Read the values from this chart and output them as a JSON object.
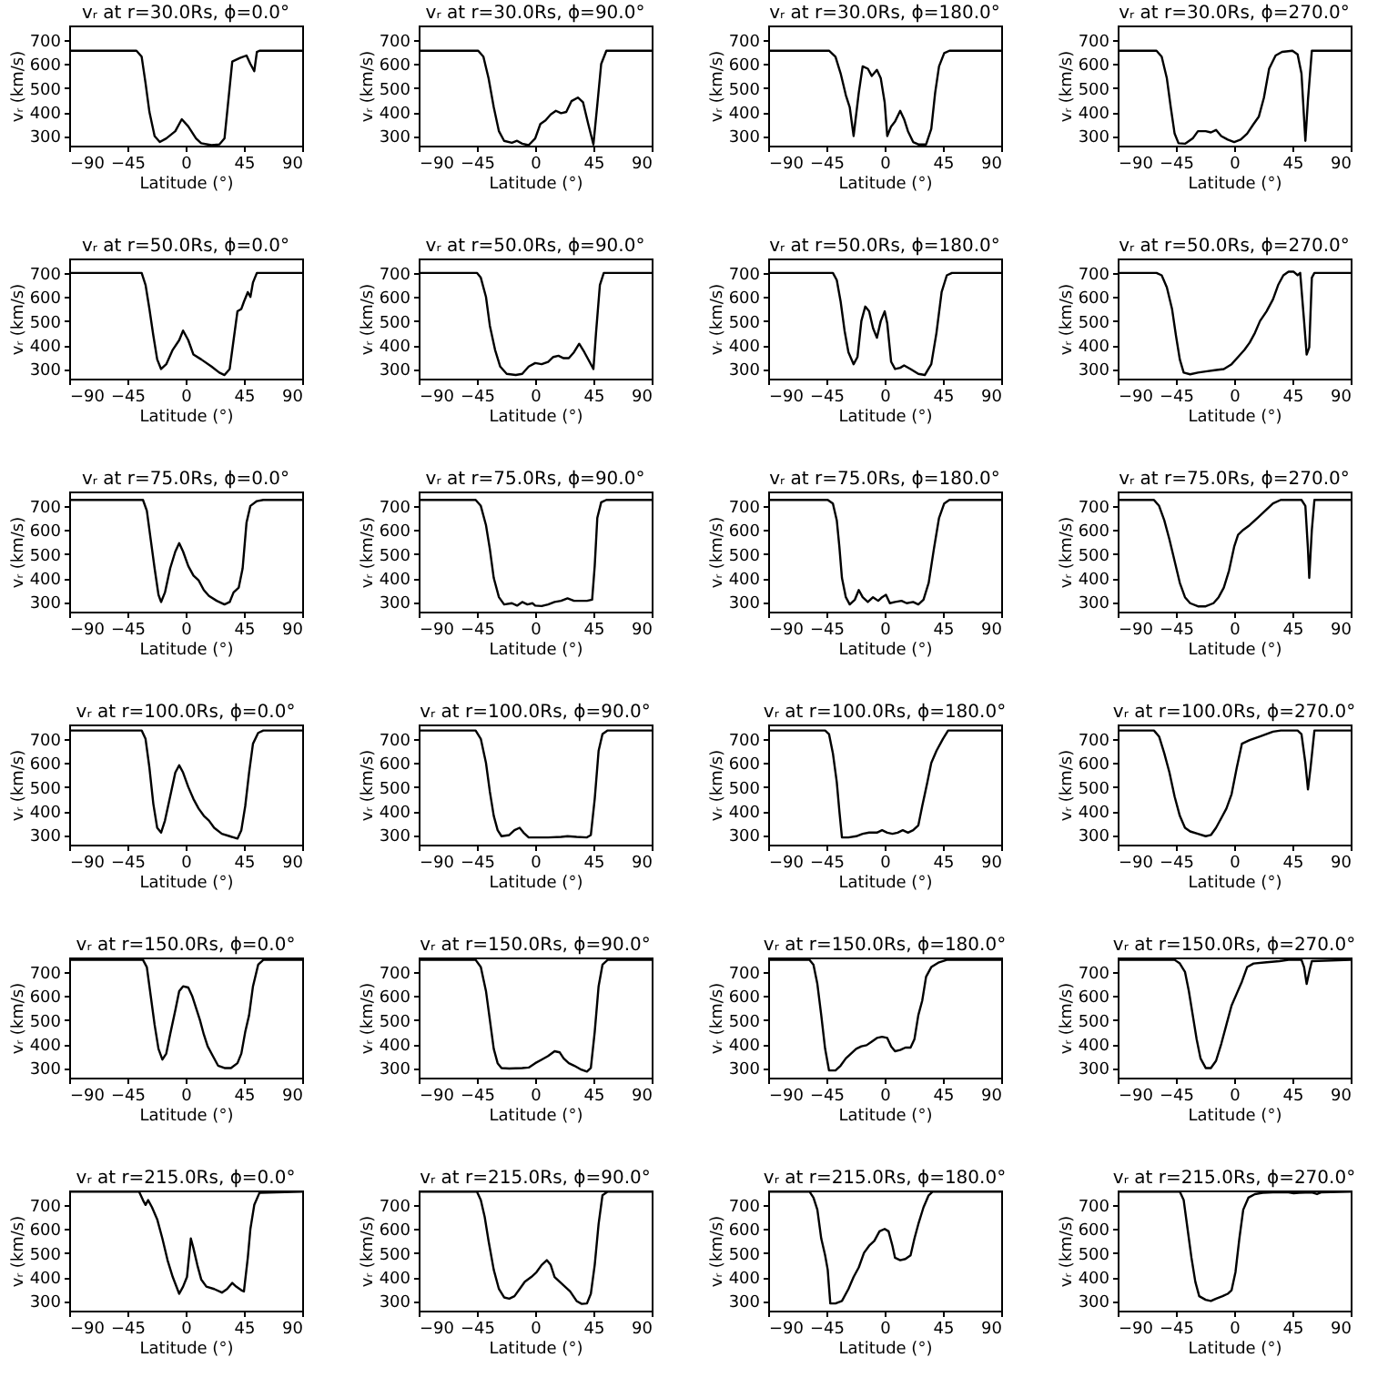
{
  "chart_data": [
    {
      "type": "line",
      "title": "vᵣ at r=30.0Rs, ϕ=0.0°",
      "xlabel": "Latitude (°)",
      "ylabel": "vᵣ (km/s)",
      "color": "#000000",
      "xlim": [
        -90,
        90
      ],
      "xticks": [
        -90,
        -45,
        0,
        45,
        90
      ],
      "ylim": [
        260,
        760
      ],
      "yticks": [
        300,
        400,
        500,
        600,
        700
      ],
      "x": [
        -90,
        -38,
        -34,
        -31,
        -28,
        -24,
        -20,
        -15,
        -8,
        -3,
        2,
        8,
        12,
        20,
        26,
        30,
        33,
        36,
        42,
        47,
        50,
        53,
        55,
        57,
        90
      ],
      "values": [
        655,
        655,
        630,
        520,
        400,
        300,
        275,
        290,
        320,
        370,
        340,
        290,
        270,
        262,
        265,
        290,
        450,
        610,
        625,
        635,
        600,
        570,
        650,
        655,
        655
      ]
    },
    {
      "type": "line",
      "title": "vᵣ at r=30.0Rs, ϕ=90.0°",
      "xlabel": "Latitude (°)",
      "ylabel": "vᵣ (km/s)",
      "color": "#000000",
      "xlim": [
        -90,
        90
      ],
      "xticks": [
        -90,
        -45,
        0,
        45,
        90
      ],
      "ylim": [
        260,
        760
      ],
      "yticks": [
        300,
        400,
        500,
        600,
        700
      ],
      "x": [
        -90,
        -44,
        -40,
        -36,
        -32,
        -28,
        -24,
        -18,
        -14,
        -10,
        -5,
        0,
        4,
        8,
        12,
        16,
        20,
        24,
        28,
        33,
        37,
        41,
        45,
        48,
        51,
        55,
        90
      ],
      "values": [
        655,
        655,
        630,
        540,
        420,
        320,
        280,
        272,
        280,
        268,
        262,
        290,
        350,
        365,
        390,
        405,
        395,
        400,
        445,
        460,
        440,
        350,
        265,
        430,
        600,
        655,
        655
      ]
    },
    {
      "type": "line",
      "title": "vᵣ at r=30.0Rs, ϕ=180.0°",
      "xlabel": "Latitude (°)",
      "ylabel": "vᵣ (km/s)",
      "color": "#000000",
      "xlim": [
        -90,
        90
      ],
      "xticks": [
        -90,
        -45,
        0,
        45,
        90
      ],
      "ylim": [
        260,
        760
      ],
      "yticks": [
        300,
        400,
        500,
        600,
        700
      ],
      "x": [
        -90,
        -43,
        -38,
        -34,
        -30,
        -27,
        -24,
        -20,
        -17,
        -13,
        -10,
        -6,
        -3,
        0,
        2,
        5,
        8,
        12,
        15,
        18,
        22,
        26,
        32,
        36,
        39,
        42,
        46,
        50,
        90
      ],
      "values": [
        655,
        655,
        630,
        560,
        470,
        420,
        300,
        480,
        590,
        580,
        550,
        575,
        540,
        440,
        300,
        340,
        360,
        405,
        370,
        320,
        275,
        265,
        265,
        330,
        480,
        590,
        645,
        655,
        655
      ]
    },
    {
      "type": "line",
      "title": "vᵣ at r=30.0Rs, ϕ=270.0°",
      "xlabel": "Latitude (°)",
      "ylabel": "vᵣ (km/s)",
      "color": "#000000",
      "xlim": [
        -90,
        90
      ],
      "xticks": [
        -90,
        -45,
        0,
        45,
        90
      ],
      "ylim": [
        260,
        760
      ],
      "yticks": [
        300,
        400,
        500,
        600,
        700
      ],
      "x": [
        -90,
        -60,
        -56,
        -52,
        -49,
        -46,
        -43,
        -38,
        -32,
        -28,
        -22,
        -18,
        -14,
        -10,
        -5,
        0,
        5,
        10,
        15,
        19,
        23,
        27,
        32,
        37,
        45,
        49,
        52,
        55,
        57,
        60,
        90
      ],
      "values": [
        655,
        655,
        630,
        540,
        420,
        310,
        270,
        268,
        290,
        320,
        320,
        315,
        325,
        300,
        285,
        275,
        285,
        310,
        350,
        380,
        460,
        580,
        635,
        650,
        655,
        640,
        560,
        280,
        450,
        655,
        655
      ]
    },
    {
      "type": "line",
      "title": "vᵣ at r=50.0Rs, ϕ=0.0°",
      "xlabel": "Latitude (°)",
      "ylabel": "vᵣ (km/s)",
      "color": "#000000",
      "xlim": [
        -90,
        90
      ],
      "xticks": [
        -90,
        -45,
        0,
        45,
        90
      ],
      "ylim": [
        260,
        760
      ],
      "yticks": [
        300,
        400,
        500,
        600,
        700
      ],
      "x": [
        -90,
        -34,
        -31,
        -28,
        -25,
        -22,
        -19,
        -15,
        -10,
        -5,
        -2,
        2,
        6,
        12,
        20,
        26,
        30,
        34,
        37,
        40,
        43,
        45,
        48,
        50,
        52,
        55,
        90
      ],
      "values": [
        700,
        700,
        650,
        550,
        440,
        340,
        300,
        320,
        380,
        420,
        460,
        420,
        360,
        340,
        310,
        285,
        275,
        300,
        420,
        540,
        550,
        580,
        620,
        600,
        660,
        700,
        700
      ]
    },
    {
      "type": "line",
      "title": "vᵣ at r=50.0Rs, ϕ=90.0°",
      "xlabel": "Latitude (°)",
      "ylabel": "vᵣ (km/s)",
      "color": "#000000",
      "xlim": [
        -90,
        90
      ],
      "xticks": [
        -90,
        -45,
        0,
        45,
        90
      ],
      "ylim": [
        260,
        760
      ],
      "yticks": [
        300,
        400,
        500,
        600,
        700
      ],
      "x": [
        -90,
        -45,
        -42,
        -38,
        -35,
        -31,
        -27,
        -22,
        -15,
        -10,
        -5,
        0,
        5,
        10,
        14,
        18,
        22,
        26,
        30,
        34,
        38,
        42,
        45,
        47,
        50,
        53,
        90
      ],
      "values": [
        700,
        700,
        680,
        600,
        480,
        380,
        310,
        280,
        275,
        280,
        310,
        325,
        320,
        330,
        350,
        355,
        345,
        345,
        370,
        405,
        370,
        330,
        300,
        450,
        650,
        700,
        700
      ]
    },
    {
      "type": "line",
      "title": "vᵣ at r=50.0Rs, ϕ=180.0°",
      "xlabel": "Latitude (°)",
      "ylabel": "vᵣ (km/s)",
      "color": "#000000",
      "xlim": [
        -90,
        90
      ],
      "xticks": [
        -90,
        -45,
        0,
        45,
        90
      ],
      "ylim": [
        260,
        760
      ],
      "yticks": [
        300,
        400,
        500,
        600,
        700
      ],
      "x": [
        -90,
        -40,
        -37,
        -34,
        -31,
        -28,
        -24,
        -21,
        -18,
        -15,
        -12,
        -9,
        -6,
        -3,
        0,
        2,
        5,
        8,
        12,
        15,
        20,
        26,
        31,
        36,
        40,
        44,
        48,
        52,
        90
      ],
      "values": [
        700,
        700,
        670,
        580,
        460,
        370,
        320,
        350,
        500,
        560,
        540,
        470,
        430,
        500,
        540,
        490,
        330,
        300,
        305,
        315,
        300,
        280,
        275,
        320,
        450,
        620,
        690,
        700,
        700
      ]
    },
    {
      "type": "line",
      "title": "vᵣ at r=50.0Rs, ϕ=270.0°",
      "xlabel": "Latitude (°)",
      "ylabel": "vᵣ (km/s)",
      "color": "#000000",
      "xlim": [
        -90,
        90
      ],
      "xticks": [
        -90,
        -45,
        0,
        45,
        90
      ],
      "ylim": [
        260,
        760
      ],
      "yticks": [
        300,
        400,
        500,
        600,
        700
      ],
      "x": [
        -90,
        -60,
        -56,
        -52,
        -48,
        -45,
        -42,
        -39,
        -34,
        -28,
        -22,
        -15,
        -8,
        -2,
        3,
        8,
        12,
        16,
        20,
        25,
        30,
        34,
        38,
        42,
        46,
        49,
        51,
        54,
        56,
        58,
        60,
        62,
        90
      ],
      "values": [
        700,
        700,
        690,
        640,
        550,
        440,
        340,
        285,
        278,
        285,
        290,
        295,
        300,
        320,
        350,
        380,
        410,
        450,
        500,
        540,
        590,
        650,
        690,
        705,
        705,
        690,
        700,
        500,
        360,
        390,
        680,
        700,
        700
      ]
    },
    {
      "type": "line",
      "title": "vᵣ at r=75.0Rs, ϕ=0.0°",
      "xlabel": "Latitude (°)",
      "ylabel": "vᵣ (km/s)",
      "color": "#000000",
      "xlim": [
        -90,
        90
      ],
      "xticks": [
        -90,
        -45,
        0,
        45,
        90
      ],
      "ylim": [
        260,
        760
      ],
      "yticks": [
        300,
        400,
        500,
        600,
        700
      ],
      "x": [
        -90,
        -33,
        -30,
        -27,
        -24,
        -21,
        -19,
        -16,
        -12,
        -8,
        -5,
        -2,
        2,
        6,
        10,
        14,
        18,
        24,
        30,
        34,
        37,
        41,
        44,
        47,
        50,
        55,
        60,
        90
      ],
      "values": [
        725,
        725,
        680,
        560,
        440,
        330,
        300,
        340,
        440,
        510,
        545,
        510,
        450,
        410,
        390,
        350,
        325,
        305,
        290,
        300,
        340,
        360,
        440,
        630,
        700,
        720,
        725,
        725
      ]
    },
    {
      "type": "line",
      "title": "vᵣ at r=75.0Rs, ϕ=90.0°",
      "xlabel": "Latitude (°)",
      "ylabel": "vᵣ (km/s)",
      "color": "#000000",
      "xlim": [
        -90,
        90
      ],
      "xticks": [
        -90,
        -45,
        0,
        45,
        90
      ],
      "ylim": [
        260,
        760
      ],
      "yticks": [
        300,
        400,
        500,
        600,
        700
      ],
      "x": [
        -90,
        -46,
        -42,
        -38,
        -35,
        -32,
        -28,
        -24,
        -18,
        -14,
        -10,
        -6,
        -2,
        0,
        5,
        10,
        15,
        20,
        25,
        30,
        40,
        44,
        46,
        48,
        51,
        55,
        90
      ],
      "values": [
        725,
        725,
        700,
        620,
        520,
        400,
        320,
        290,
        295,
        285,
        300,
        290,
        295,
        285,
        283,
        290,
        300,
        305,
        315,
        305,
        305,
        310,
        450,
        650,
        715,
        725,
        725
      ]
    },
    {
      "type": "line",
      "title": "vᵣ at r=75.0Rs, ϕ=180.0°",
      "xlabel": "Latitude (°)",
      "ylabel": "vᵣ (km/s)",
      "color": "#000000",
      "xlim": [
        -90,
        90
      ],
      "xticks": [
        -90,
        -45,
        0,
        45,
        90
      ],
      "ylim": [
        260,
        760
      ],
      "yticks": [
        300,
        400,
        500,
        600,
        700
      ],
      "x": [
        -90,
        -44,
        -40,
        -37,
        -35,
        -33,
        -30,
        -27,
        -23,
        -20,
        -17,
        -13,
        -9,
        -5,
        -2,
        1,
        4,
        8,
        13,
        17,
        22,
        26,
        30,
        34,
        38,
        42,
        46,
        50,
        90
      ],
      "values": [
        725,
        725,
        710,
        640,
        530,
        400,
        320,
        290,
        310,
        350,
        320,
        300,
        320,
        305,
        320,
        330,
        295,
        300,
        305,
        295,
        300,
        290,
        310,
        380,
        520,
        650,
        710,
        725,
        725
      ]
    },
    {
      "type": "line",
      "title": "vᵣ at r=75.0Rs, ϕ=270.0°",
      "xlabel": "Latitude (°)",
      "ylabel": "vᵣ (km/s)",
      "color": "#000000",
      "xlim": [
        -90,
        90
      ],
      "xticks": [
        -90,
        -45,
        0,
        45,
        90
      ],
      "ylim": [
        260,
        760
      ],
      "yticks": [
        300,
        400,
        500,
        600,
        700
      ],
      "x": [
        -90,
        -62,
        -58,
        -54,
        -50,
        -46,
        -42,
        -38,
        -34,
        -28,
        -22,
        -16,
        -12,
        -8,
        -4,
        0,
        3,
        7,
        12,
        18,
        24,
        30,
        36,
        52,
        55,
        57,
        58,
        60,
        62,
        90
      ],
      "values": [
        725,
        725,
        700,
        640,
        560,
        470,
        380,
        320,
        295,
        282,
        282,
        295,
        320,
        360,
        430,
        530,
        580,
        600,
        620,
        650,
        680,
        710,
        725,
        725,
        700,
        520,
        400,
        600,
        725,
        725
      ]
    },
    {
      "type": "line",
      "title": "vᵣ at r=100.0Rs, ϕ=0.0°",
      "xlabel": "Latitude (°)",
      "ylabel": "vᵣ (km/s)",
      "color": "#000000",
      "xlim": [
        -90,
        90
      ],
      "xticks": [
        -90,
        -45,
        0,
        45,
        90
      ],
      "ylim": [
        260,
        760
      ],
      "yticks": [
        300,
        400,
        500,
        600,
        700
      ],
      "x": [
        -90,
        -34,
        -31,
        -28,
        -25,
        -22,
        -19,
        -16,
        -12,
        -8,
        -5,
        -2,
        2,
        6,
        10,
        14,
        18,
        22,
        28,
        34,
        40,
        43,
        46,
        49,
        52,
        56,
        60,
        90
      ],
      "values": [
        735,
        735,
        700,
        580,
        430,
        330,
        310,
        360,
        460,
        560,
        590,
        560,
        500,
        450,
        410,
        380,
        360,
        330,
        305,
        295,
        285,
        320,
        420,
        560,
        680,
        725,
        735,
        735
      ]
    },
    {
      "type": "line",
      "title": "vᵣ at r=100.0Rs, ϕ=90.0°",
      "xlabel": "Latitude (°)",
      "ylabel": "vᵣ (km/s)",
      "color": "#000000",
      "xlim": [
        -90,
        90
      ],
      "xticks": [
        -90,
        -45,
        0,
        45,
        90
      ],
      "ylim": [
        260,
        760
      ],
      "yticks": [
        300,
        400,
        500,
        600,
        700
      ],
      "x": [
        -90,
        -46,
        -42,
        -38,
        -35,
        -32,
        -29,
        -26,
        -20,
        -16,
        -12,
        -9,
        -5,
        0,
        10,
        20,
        25,
        32,
        40,
        43,
        46,
        49,
        52,
        56,
        90
      ],
      "values": [
        735,
        735,
        700,
        600,
        480,
        380,
        320,
        295,
        300,
        320,
        330,
        310,
        290,
        290,
        290,
        292,
        295,
        292,
        290,
        300,
        450,
        650,
        720,
        735,
        735
      ]
    },
    {
      "type": "line",
      "title": "vᵣ at r=100.0Rs, ϕ=180.0°",
      "xlabel": "Latitude (°)",
      "ylabel": "vᵣ (km/s)",
      "color": "#000000",
      "xlim": [
        -90,
        90
      ],
      "xticks": [
        -90,
        -45,
        0,
        45,
        90
      ],
      "ylim": [
        260,
        760
      ],
      "yticks": [
        300,
        400,
        500,
        600,
        700
      ],
      "x": [
        -90,
        -46,
        -43,
        -40,
        -37,
        -35,
        -33,
        -28,
        -22,
        -17,
        -12,
        -6,
        -2,
        2,
        6,
        10,
        14,
        18,
        22,
        26,
        29,
        33,
        36,
        40,
        45,
        49,
        90
      ],
      "values": [
        735,
        735,
        720,
        640,
        520,
        400,
        290,
        290,
        295,
        305,
        310,
        310,
        320,
        310,
        305,
        310,
        320,
        310,
        320,
        340,
        420,
        520,
        600,
        650,
        700,
        735,
        735
      ]
    },
    {
      "type": "line",
      "title": "vᵣ at r=100.0Rs, ϕ=270.0°",
      "xlabel": "Latitude (°)",
      "ylabel": "vᵣ (km/s)",
      "color": "#000000",
      "xlim": [
        -90,
        90
      ],
      "xticks": [
        -90,
        -45,
        0,
        45,
        90
      ],
      "ylim": [
        260,
        760
      ],
      "yticks": [
        300,
        400,
        500,
        600,
        700
      ],
      "x": [
        -90,
        -62,
        -58,
        -54,
        -50,
        -46,
        -42,
        -38,
        -34,
        -28,
        -22,
        -18,
        -14,
        -10,
        -6,
        -2,
        2,
        6,
        12,
        20,
        30,
        36,
        49,
        52,
        55,
        57,
        59,
        62,
        90
      ],
      "values": [
        735,
        735,
        710,
        640,
        560,
        460,
        380,
        330,
        315,
        305,
        295,
        300,
        330,
        370,
        410,
        470,
        580,
        680,
        695,
        710,
        730,
        735,
        735,
        720,
        600,
        490,
        580,
        735,
        735
      ]
    },
    {
      "type": "line",
      "title": "vᵣ at r=150.0Rs, ϕ=0.0°",
      "xlabel": "Latitude (°)",
      "ylabel": "vᵣ (km/s)",
      "color": "#000000",
      "xlim": [
        -90,
        90
      ],
      "xticks": [
        -90,
        -45,
        0,
        45,
        90
      ],
      "ylim": [
        260,
        760
      ],
      "yticks": [
        300,
        400,
        500,
        600,
        700
      ],
      "x": [
        -90,
        -33,
        -30,
        -27,
        -24,
        -21,
        -18,
        -15,
        -12,
        -8,
        -5,
        -2,
        2,
        5,
        8,
        11,
        14,
        17,
        21,
        25,
        30,
        35,
        40,
        43,
        46,
        49,
        52,
        56,
        60,
        90
      ],
      "values": [
        750,
        750,
        720,
        600,
        480,
        380,
        335,
        360,
        440,
        540,
        620,
        640,
        635,
        600,
        550,
        500,
        440,
        390,
        350,
        310,
        300,
        300,
        320,
        360,
        450,
        520,
        640,
        730,
        750,
        750
      ]
    },
    {
      "type": "line",
      "title": "vᵣ at r=150.0Rs, ϕ=90.0°",
      "xlabel": "Latitude (°)",
      "ylabel": "vᵣ (km/s)",
      "color": "#000000",
      "xlim": [
        -90,
        90
      ],
      "xticks": [
        -90,
        -45,
        0,
        45,
        90
      ],
      "ylim": [
        260,
        760
      ],
      "yticks": [
        300,
        400,
        500,
        600,
        700
      ],
      "x": [
        -90,
        -46,
        -42,
        -38,
        -35,
        -32,
        -29,
        -26,
        -20,
        -10,
        -5,
        0,
        5,
        10,
        15,
        19,
        22,
        26,
        30,
        35,
        40,
        43,
        46,
        49,
        52,
        56,
        90
      ],
      "values": [
        750,
        750,
        720,
        620,
        500,
        380,
        320,
        300,
        298,
        300,
        302,
        320,
        335,
        350,
        370,
        365,
        340,
        320,
        310,
        295,
        285,
        300,
        450,
        640,
        730,
        750,
        750
      ]
    },
    {
      "type": "line",
      "title": "vᵣ at r=150.0Rs, ϕ=180.0°",
      "xlabel": "Latitude (°)",
      "ylabel": "vᵣ (km/s)",
      "color": "#000000",
      "xlim": [
        -90,
        90
      ],
      "xticks": [
        -90,
        -45,
        0,
        45,
        90
      ],
      "ylim": [
        260,
        760
      ],
      "yticks": [
        300,
        400,
        500,
        600,
        700
      ],
      "x": [
        -90,
        -58,
        -55,
        -52,
        -49,
        -46,
        -43,
        -38,
        -34,
        -30,
        -26,
        -22,
        -18,
        -14,
        -10,
        -6,
        -2,
        2,
        5,
        8,
        12,
        16,
        20,
        23,
        26,
        29,
        32,
        36,
        42,
        48,
        90
      ],
      "values": [
        750,
        750,
        730,
        650,
        520,
        380,
        290,
        290,
        310,
        340,
        360,
        380,
        390,
        395,
        410,
        425,
        430,
        425,
        390,
        370,
        375,
        385,
        385,
        420,
        520,
        580,
        680,
        720,
        740,
        750,
        750
      ]
    },
    {
      "type": "line",
      "title": "vᵣ at r=150.0Rs, ϕ=270.0°",
      "xlabel": "Latitude (°)",
      "ylabel": "vᵣ (km/s)",
      "color": "#000000",
      "xlim": [
        -90,
        90
      ],
      "xticks": [
        -90,
        -45,
        0,
        45,
        90
      ],
      "ylim": [
        260,
        760
      ],
      "yticks": [
        300,
        400,
        500,
        600,
        700
      ],
      "x": [
        -90,
        -46,
        -42,
        -38,
        -35,
        -32,
        -29,
        -26,
        -22,
        -18,
        -14,
        -10,
        -6,
        -2,
        2,
        6,
        10,
        15,
        25,
        35,
        42,
        52,
        54,
        56,
        58,
        60,
        90
      ],
      "values": [
        750,
        750,
        735,
        700,
        620,
        520,
        420,
        340,
        300,
        300,
        330,
        400,
        480,
        560,
        610,
        660,
        720,
        735,
        740,
        745,
        750,
        750,
        720,
        650,
        700,
        745,
        750
      ]
    },
    {
      "type": "line",
      "title": "vᵣ at r=215.0Rs, ϕ=0.0°",
      "xlabel": "Latitude (°)",
      "ylabel": "vᵣ (km/s)",
      "color": "#000000",
      "xlim": [
        -90,
        90
      ],
      "xticks": [
        -90,
        -45,
        0,
        45,
        90
      ],
      "ylim": [
        260,
        760
      ],
      "yticks": [
        300,
        400,
        500,
        600,
        700
      ],
      "x": [
        -90,
        -36,
        -33,
        -31,
        -29,
        -26,
        -22,
        -18,
        -14,
        -10,
        -5,
        -2,
        1,
        4,
        6,
        9,
        12,
        16,
        22,
        28,
        32,
        36,
        39,
        43,
        45,
        48,
        50,
        53,
        57,
        90
      ],
      "values": [
        755,
        755,
        720,
        700,
        720,
        690,
        640,
        560,
        470,
        400,
        330,
        360,
        400,
        560,
        520,
        450,
        390,
        360,
        350,
        335,
        350,
        375,
        360,
        345,
        340,
        480,
        600,
        700,
        750,
        755
      ]
    },
    {
      "type": "line",
      "title": "vᵣ at r=215.0Rs, ϕ=90.0°",
      "xlabel": "Latitude (°)",
      "ylabel": "vᵣ (km/s)",
      "color": "#000000",
      "xlim": [
        -90,
        90
      ],
      "xticks": [
        -90,
        -45,
        0,
        45,
        90
      ],
      "ylim": [
        260,
        760
      ],
      "yticks": [
        300,
        400,
        500,
        600,
        700
      ],
      "x": [
        -90,
        -45,
        -42,
        -39,
        -36,
        -32,
        -28,
        -24,
        -20,
        -16,
        -12,
        -8,
        -3,
        1,
        5,
        9,
        12,
        15,
        19,
        23,
        27,
        32,
        36,
        40,
        43,
        46,
        49,
        52,
        56,
        90
      ],
      "values": [
        755,
        755,
        720,
        650,
        550,
        430,
        350,
        315,
        310,
        320,
        350,
        380,
        400,
        420,
        450,
        470,
        450,
        400,
        380,
        360,
        340,
        300,
        288,
        290,
        330,
        450,
        620,
        740,
        755,
        755
      ]
    },
    {
      "type": "line",
      "title": "vᵣ at r=215.0Rs, ϕ=180.0°",
      "xlabel": "Latitude (°)",
      "ylabel": "vᵣ (km/s)",
      "color": "#000000",
      "xlim": [
        -90,
        90
      ],
      "xticks": [
        -90,
        -45,
        0,
        45,
        90
      ],
      "ylim": [
        260,
        760
      ],
      "yticks": [
        300,
        400,
        500,
        600,
        700
      ],
      "x": [
        -90,
        -58,
        -55,
        -52,
        -49,
        -46,
        -44,
        -42,
        -38,
        -33,
        -28,
        -24,
        -20,
        -16,
        -12,
        -8,
        -4,
        0,
        3,
        6,
        8,
        12,
        16,
        20,
        23,
        26,
        30,
        34,
        37,
        90
      ],
      "values": [
        755,
        755,
        730,
        680,
        560,
        490,
        430,
        290,
        290,
        300,
        350,
        400,
        440,
        500,
        530,
        550,
        590,
        600,
        590,
        530,
        480,
        470,
        475,
        490,
        560,
        620,
        690,
        740,
        755,
        755
      ]
    },
    {
      "type": "line",
      "title": "vᵣ at r=215.0Rs, ϕ=270.0°",
      "xlabel": "Latitude (°)",
      "ylabel": "vᵣ (km/s)",
      "color": "#000000",
      "xlim": [
        -90,
        90
      ],
      "xticks": [
        -90,
        -45,
        0,
        45,
        90
      ],
      "ylim": [
        260,
        760
      ],
      "yticks": [
        300,
        400,
        500,
        600,
        700
      ],
      "x": [
        -90,
        -42,
        -39,
        -36,
        -33,
        -30,
        -27,
        -22,
        -18,
        -14,
        -9,
        -5,
        -2,
        1,
        4,
        7,
        11,
        16,
        22,
        30,
        42,
        46,
        50,
        60,
        64,
        67,
        90
      ],
      "values": [
        755,
        755,
        720,
        600,
        480,
        380,
        320,
        305,
        300,
        310,
        320,
        330,
        345,
        420,
        560,
        680,
        730,
        745,
        750,
        752,
        752,
        748,
        750,
        752,
        745,
        752,
        755
      ]
    }
  ]
}
